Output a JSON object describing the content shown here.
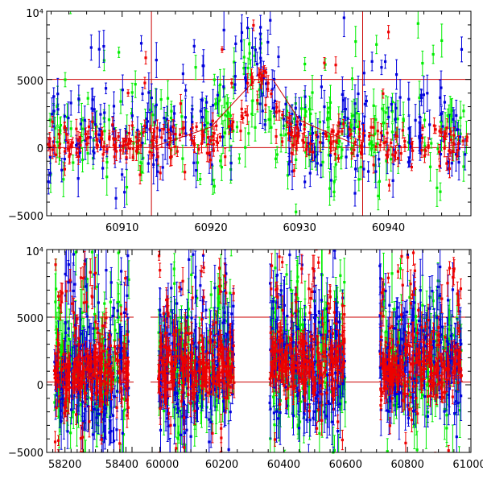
{
  "colors": {
    "green": "#00ee00",
    "blue": "#0000dd",
    "red": "#ee0000",
    "ref": "#cc0000",
    "axis": "#000000"
  },
  "chart_data": [
    {
      "type": "scatter",
      "name": "top-panel",
      "title": "",
      "xlabel": "",
      "ylabel": "",
      "xlim": [
        60901.5,
        60949.3
      ],
      "ylim": [
        -5000,
        10000
      ],
      "x_ticks": [
        {
          "value": 60910,
          "label": "60910"
        },
        {
          "value": 60920,
          "label": "60920"
        },
        {
          "value": 60930,
          "label": "60930"
        },
        {
          "value": 60940,
          "label": "60940"
        }
      ],
      "y_ticks": [
        {
          "value": 10000,
          "label": "10⁴"
        },
        {
          "value": 5000,
          "label": "5000"
        },
        {
          "value": 0,
          "label": "0"
        },
        {
          "value": -5000,
          "label": "−5000"
        }
      ],
      "hlines": [
        0,
        5000
      ],
      "vlines": [
        60913.3,
        60937.1
      ],
      "model_line": {
        "x": [
          60913.3,
          60920,
          60925,
          60927,
          60930,
          60937.1
        ],
        "y": [
          0,
          1500,
          5000,
          5000,
          2000,
          0
        ]
      },
      "series": [
        {
          "name": "green",
          "n_points": 260,
          "x_range": [
            60901.5,
            60949
          ],
          "baseline": 800,
          "scatter": 1800,
          "flare_peak_x": 60925,
          "flare_height": 4000,
          "flare_width": 2.5,
          "outlier_fraction": 0.15
        },
        {
          "name": "blue",
          "n_points": 260,
          "x_range": [
            60901.5,
            60949
          ],
          "baseline": 1200,
          "scatter": 2000,
          "flare_peak_x": 60924.5,
          "flare_height": 5500,
          "flare_width": 2.5,
          "outlier_fraction": 0.12
        },
        {
          "name": "red",
          "n_points": 300,
          "x_range": [
            60901.5,
            60949
          ],
          "baseline": 400,
          "scatter": 700,
          "flare_peak_x": 60925.5,
          "flare_height": 4600,
          "flare_width": 2.3,
          "outlier_fraction": 0.05
        }
      ]
    },
    {
      "type": "scatter",
      "name": "bottom-panel",
      "title": "",
      "xlabel": "",
      "ylabel": "",
      "axis_break": true,
      "segments": [
        {
          "xlim": [
            58140,
            58420
          ]
        },
        {
          "xlim": [
            59975,
            61005
          ]
        }
      ],
      "ylim": [
        -5000,
        10000
      ],
      "x_ticks": [
        {
          "value": 58200,
          "label": "58200"
        },
        {
          "value": 58400,
          "label": "58400"
        },
        {
          "value": 60000,
          "label": "60000"
        },
        {
          "value": 60200,
          "label": "60200"
        },
        {
          "value": 60400,
          "label": "60400"
        },
        {
          "value": 60600,
          "label": "60600"
        },
        {
          "value": 60800,
          "label": "60800"
        },
        {
          "value": 61000,
          "label": "61000"
        }
      ],
      "y_ticks": [
        {
          "value": 10000,
          "label": "10⁴"
        },
        {
          "value": 5000,
          "label": "5000"
        },
        {
          "value": 0,
          "label": "0"
        },
        {
          "value": -5000,
          "label": "−5000"
        }
      ],
      "hlines": [
        200,
        5000
      ],
      "data_windows": [
        {
          "x": [
            58165,
            58410
          ],
          "mean": 1000,
          "spread": 2600
        },
        {
          "x": [
            59995,
            60240
          ],
          "mean": 1200,
          "spread": 2900
        },
        {
          "x": [
            60355,
            60600
          ],
          "mean": 1600,
          "spread": 3000
        },
        {
          "x": [
            60710,
            60975
          ],
          "mean": 1400,
          "spread": 2800
        }
      ],
      "series": [
        {
          "name": "green",
          "points_per_window": 150,
          "scatter_scale": 1.2
        },
        {
          "name": "blue",
          "points_per_window": 170,
          "scatter_scale": 1.35
        },
        {
          "name": "red",
          "points_per_window": 240,
          "scatter_scale": 0.75
        }
      ]
    }
  ]
}
